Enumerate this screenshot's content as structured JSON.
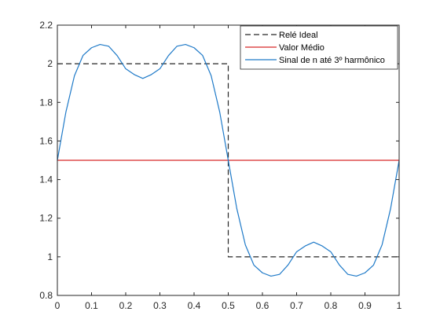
{
  "chart_data": {
    "type": "line",
    "title": "",
    "xlabel": "",
    "ylabel": "",
    "xlim": [
      0,
      1
    ],
    "ylim": [
      0.8,
      2.2
    ],
    "x_ticks": [
      0,
      0.1,
      0.2,
      0.3,
      0.4,
      0.5,
      0.6,
      0.7,
      0.8,
      0.9,
      1
    ],
    "y_ticks": [
      0.8,
      1,
      1.2,
      1.4,
      1.6,
      1.8,
      2,
      2.2
    ],
    "grid": false,
    "legend_position": "top-right",
    "series": [
      {
        "name": "Relé Ideal",
        "color": "#262626",
        "style": "dashed",
        "x": [
          0,
          0.5,
          0.5,
          1
        ],
        "y": [
          2,
          2,
          1,
          1
        ]
      },
      {
        "name": "Valor Médio",
        "color": "#d62728",
        "style": "solid",
        "x": [
          0,
          1
        ],
        "y": [
          1.5,
          1.5
        ]
      },
      {
        "name": "Sinal de n até 3º harmônico",
        "color": "#1f7ac8",
        "style": "solid",
        "x": [
          0,
          0.025,
          0.05,
          0.075,
          0.1,
          0.125,
          0.15,
          0.175,
          0.2,
          0.225,
          0.25,
          0.275,
          0.3,
          0.325,
          0.35,
          0.375,
          0.4,
          0.425,
          0.45,
          0.475,
          0.5,
          0.525,
          0.55,
          0.575,
          0.6,
          0.625,
          0.65,
          0.675,
          0.7,
          0.725,
          0.75,
          0.775,
          0.8,
          0.825,
          0.85,
          0.875,
          0.9,
          0.925,
          0.95,
          0.975,
          1
        ],
        "y": [
          1.5,
          1.75,
          1.938,
          2.043,
          2.083,
          2.1,
          2.091,
          2.042,
          1.974,
          1.944,
          1.924,
          1.944,
          1.974,
          2.042,
          2.091,
          2.1,
          2.083,
          2.043,
          1.938,
          1.75,
          1.5,
          1.25,
          1.062,
          0.957,
          0.917,
          0.9,
          0.909,
          0.958,
          1.026,
          1.056,
          1.076,
          1.056,
          1.026,
          0.958,
          0.909,
          0.9,
          0.917,
          0.957,
          1.062,
          1.25,
          1.5
        ]
      }
    ]
  }
}
